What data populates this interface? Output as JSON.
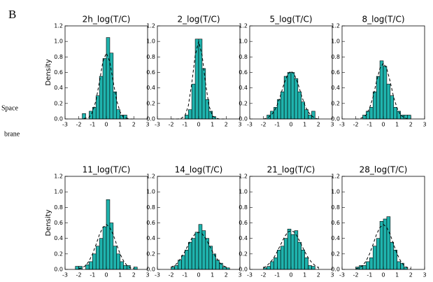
{
  "panel_label": "B",
  "side_labels": [
    "Space",
    "brane"
  ],
  "chart_data": [
    {
      "type": "histogram",
      "title": "2h_log(T/C)",
      "ylabel": "Density",
      "color": "#1fb3ad",
      "curve_color": "#000000",
      "bins": [
        -2.5,
        -2.25,
        -2,
        -1.75,
        -1.5,
        -1.25,
        -1,
        -0.75,
        -0.5,
        -0.25,
        0,
        0.25,
        0.5,
        0.75,
        1,
        1.25,
        1.5,
        1.75,
        2,
        2.25,
        2.5
      ],
      "values": [
        0,
        0,
        0,
        0.07,
        0,
        0.1,
        0.15,
        0.3,
        0.55,
        0.78,
        1.05,
        0.85,
        0.35,
        0.12,
        0.05,
        0.05,
        0,
        0,
        0,
        0
      ],
      "curve_x": [
        -2,
        -1.75,
        -1.5,
        -1.25,
        -1,
        -0.75,
        -0.5,
        -0.25,
        0,
        0.25,
        0.5,
        0.75,
        1,
        1.25,
        1.5,
        1.75,
        2
      ],
      "curve_values": [
        0,
        0,
        0.01,
        0.02,
        0.09,
        0.24,
        0.48,
        0.74,
        0.85,
        0.74,
        0.48,
        0.24,
        0.09,
        0.02,
        0.01,
        0,
        0
      ],
      "xlim": [
        -3,
        3
      ],
      "xticks": [
        -3,
        -2,
        -1,
        0,
        1,
        2,
        3
      ],
      "ylim": [
        0,
        1.2
      ],
      "yticks": [
        {
          "value": 0,
          "label": "0.0"
        },
        0.2,
        0.4,
        0.6,
        0.8,
        {
          "value": 1,
          "label": "1.0"
        },
        1.2
      ]
    },
    {
      "type": "histogram",
      "title": "2_log(T/C)",
      "color": "#1fb3ad",
      "curve_color": "#000000",
      "bins": [
        -2.5,
        -2.25,
        -2,
        -1.75,
        -1.5,
        -1.25,
        -1,
        -0.75,
        -0.5,
        -0.25,
        0,
        0.25,
        0.5,
        0.75,
        1,
        1.25,
        1.5,
        1.75,
        2,
        2.25,
        2.5
      ],
      "values": [
        0,
        0,
        0,
        0,
        0,
        0,
        0.05,
        0.12,
        0.45,
        1.03,
        1.03,
        0.65,
        0.25,
        0.1,
        0.03,
        0,
        0,
        0,
        0,
        0
      ],
      "curve_x": [
        -2,
        -1.75,
        -1.5,
        -1.25,
        -1,
        -0.75,
        -0.5,
        -0.25,
        0,
        0.25,
        0.5,
        0.75,
        1,
        1.25,
        1.5,
        1.75,
        2
      ],
      "curve_values": [
        0,
        0,
        0,
        0.01,
        0.04,
        0.17,
        0.46,
        0.82,
        1,
        0.82,
        0.46,
        0.17,
        0.04,
        0.01,
        0,
        0,
        0
      ],
      "xlim": [
        -3,
        3
      ],
      "xticks": [
        -3,
        -2,
        -1,
        0,
        1,
        2,
        3
      ],
      "ylim": [
        0,
        1.2
      ],
      "yticks": [
        {
          "value": 0,
          "label": "0.0"
        },
        0.2,
        0.4,
        0.6,
        0.8,
        {
          "value": 1,
          "label": "1.0"
        },
        1.2
      ]
    },
    {
      "type": "histogram",
      "title": "5_log(T/C)",
      "color": "#1fb3ad",
      "curve_color": "#000000",
      "bins": [
        -2.5,
        -2.25,
        -2,
        -1.75,
        -1.5,
        -1.25,
        -1,
        -0.75,
        -0.5,
        -0.25,
        0,
        0.25,
        0.5,
        0.75,
        1,
        1.25,
        1.5,
        1.75,
        2,
        2.25,
        2.5
      ],
      "values": [
        0,
        0,
        0,
        0.05,
        0.1,
        0.15,
        0.25,
        0.35,
        0.55,
        0.6,
        0.6,
        0.52,
        0.35,
        0.22,
        0.12,
        0.05,
        0.1,
        0,
        0,
        0
      ],
      "curve_x": [
        -2,
        -1.75,
        -1.5,
        -1.25,
        -1,
        -0.75,
        -0.5,
        -0.25,
        0,
        0.25,
        0.5,
        0.75,
        1,
        1.25,
        1.5,
        1.75,
        2
      ],
      "curve_values": [
        0,
        0.01,
        0.04,
        0.09,
        0.18,
        0.31,
        0.46,
        0.57,
        0.62,
        0.57,
        0.46,
        0.31,
        0.18,
        0.09,
        0.04,
        0.01,
        0
      ],
      "xlim": [
        -3,
        3
      ],
      "xticks": [
        -3,
        -2,
        -1,
        0,
        1,
        2,
        3
      ],
      "ylim": [
        0,
        1.2
      ],
      "yticks": [
        {
          "value": 0,
          "label": "0.0"
        },
        0.2,
        0.4,
        0.6,
        0.8,
        {
          "value": 1,
          "label": "1.0"
        },
        1.2
      ]
    },
    {
      "type": "histogram",
      "title": "8_log(T/C)",
      "color": "#1fb3ad",
      "curve_color": "#000000",
      "bins": [
        -2.5,
        -2.25,
        -2,
        -1.75,
        -1.5,
        -1.25,
        -1,
        -0.75,
        -0.5,
        -0.25,
        0,
        0.25,
        0.5,
        0.75,
        1,
        1.25,
        1.5,
        1.75,
        2,
        2.25,
        2.5
      ],
      "values": [
        0,
        0,
        0,
        0,
        0.05,
        0.1,
        0.15,
        0.35,
        0.55,
        0.75,
        0.68,
        0.45,
        0.3,
        0.15,
        0.1,
        0.05,
        0.05,
        0.05,
        0,
        0
      ],
      "curve_x": [
        -2,
        -1.75,
        -1.5,
        -1.25,
        -1,
        -0.75,
        -0.5,
        -0.25,
        0,
        0.25,
        0.5,
        0.75,
        1,
        1.25,
        1.5,
        1.75,
        2
      ],
      "curve_values": [
        0,
        0,
        0.02,
        0.05,
        0.14,
        0.28,
        0.48,
        0.65,
        0.72,
        0.65,
        0.48,
        0.28,
        0.14,
        0.05,
        0.02,
        0,
        0
      ],
      "xlim": [
        -3,
        3
      ],
      "xticks": [
        -3,
        -2,
        -1,
        0,
        1,
        2,
        3
      ],
      "ylim": [
        0,
        1.2
      ],
      "yticks": [
        {
          "value": 0,
          "label": "0.0"
        },
        0.2,
        0.4,
        0.6,
        0.8,
        {
          "value": 1,
          "label": "1.0"
        },
        1.2
      ]
    },
    {
      "type": "histogram",
      "title": "11_log(T/C)",
      "ylabel": "Density",
      "color": "#1fb3ad",
      "curve_color": "#000000",
      "bins": [
        -2.5,
        -2.25,
        -2,
        -1.75,
        -1.5,
        -1.25,
        -1,
        -0.75,
        -0.5,
        -0.25,
        0,
        0.25,
        0.5,
        0.75,
        1,
        1.25,
        1.5,
        1.75,
        2,
        2.25,
        2.5
      ],
      "values": [
        0,
        0.04,
        0.04,
        0,
        0.06,
        0.1,
        0.2,
        0.3,
        0.4,
        0.55,
        0.9,
        0.6,
        0.3,
        0.2,
        0.1,
        0.05,
        0.05,
        0,
        0.03,
        0
      ],
      "curve_x": [
        -2,
        -1.75,
        -1.5,
        -1.25,
        -1,
        -0.75,
        -0.5,
        -0.25,
        0,
        0.25,
        0.5,
        0.75,
        1,
        1.25,
        1.5,
        1.75,
        2
      ],
      "curve_values": [
        0.01,
        0.02,
        0.05,
        0.11,
        0.2,
        0.32,
        0.45,
        0.54,
        0.58,
        0.54,
        0.45,
        0.32,
        0.2,
        0.11,
        0.05,
        0.02,
        0.01
      ],
      "xlim": [
        -3,
        3
      ],
      "xticks": [
        -3,
        -2,
        -1,
        0,
        1,
        2,
        3
      ],
      "ylim": [
        0,
        1.2
      ],
      "yticks": [
        {
          "value": 0,
          "label": "0.0"
        },
        0.2,
        0.4,
        0.6,
        0.8,
        {
          "value": 1,
          "label": "1.0"
        },
        1.2
      ]
    },
    {
      "type": "histogram",
      "title": "14_log(T/C)",
      "color": "#1fb3ad",
      "curve_color": "#000000",
      "bins": [
        -2.5,
        -2.25,
        -2,
        -1.75,
        -1.5,
        -1.25,
        -1,
        -0.75,
        -0.5,
        -0.25,
        0,
        0.25,
        0.5,
        0.75,
        1,
        1.25,
        1.5,
        1.75,
        2,
        2.25,
        2.5
      ],
      "values": [
        0,
        0,
        0.03,
        0.05,
        0.12,
        0.18,
        0.25,
        0.35,
        0.4,
        0.48,
        0.58,
        0.5,
        0.4,
        0.3,
        0.2,
        0.12,
        0.08,
        0.03,
        0.02,
        0
      ],
      "curve_x": [
        -2,
        -1.75,
        -1.5,
        -1.25,
        -1,
        -0.75,
        -0.5,
        -0.25,
        0,
        0.25,
        0.5,
        0.75,
        1,
        1.25,
        1.5,
        1.75,
        2
      ],
      "curve_values": [
        0.03,
        0.05,
        0.09,
        0.16,
        0.23,
        0.32,
        0.4,
        0.46,
        0.48,
        0.46,
        0.4,
        0.32,
        0.23,
        0.16,
        0.09,
        0.05,
        0.03
      ],
      "xlim": [
        -3,
        3
      ],
      "xticks": [
        -3,
        -2,
        -1,
        0,
        1,
        2,
        3
      ],
      "ylim": [
        0,
        1.2
      ],
      "yticks": [
        {
          "value": 0,
          "label": "0.0"
        },
        0.2,
        0.4,
        0.6,
        0.8,
        {
          "value": 1,
          "label": "1.0"
        },
        1.2
      ]
    },
    {
      "type": "histogram",
      "title": "21_log(T/C)",
      "color": "#1fb3ad",
      "curve_color": "#000000",
      "bins": [
        -2.5,
        -2.25,
        -2,
        -1.75,
        -1.5,
        -1.25,
        -1,
        -0.75,
        -0.5,
        -0.25,
        0,
        0.25,
        0.5,
        0.75,
        1,
        1.25,
        1.5,
        1.75,
        2,
        2.25,
        2.5
      ],
      "values": [
        0,
        0,
        0.02,
        0.04,
        0.1,
        0.15,
        0.25,
        0.3,
        0.4,
        0.52,
        0.45,
        0.5,
        0.35,
        0.25,
        0.15,
        0.05,
        0.04,
        0,
        0,
        0
      ],
      "curve_x": [
        -2,
        -1.75,
        -1.5,
        -1.25,
        -1,
        -0.75,
        -0.5,
        -0.25,
        0,
        0.25,
        0.5,
        0.75,
        1,
        1.25,
        1.5,
        1.75,
        2
      ],
      "curve_values": [
        0.02,
        0.05,
        0.09,
        0.15,
        0.23,
        0.32,
        0.41,
        0.48,
        0.5,
        0.48,
        0.41,
        0.32,
        0.23,
        0.15,
        0.09,
        0.05,
        0.02
      ],
      "xlim": [
        -3,
        3
      ],
      "xticks": [
        -3,
        -2,
        -1,
        0,
        1,
        2,
        3
      ],
      "ylim": [
        0,
        1.2
      ],
      "yticks": [
        {
          "value": 0,
          "label": "0.0"
        },
        0.2,
        0.4,
        0.6,
        0.8,
        {
          "value": 1,
          "label": "1.0"
        },
        1.2
      ]
    },
    {
      "type": "histogram",
      "title": "28_log(T/C)",
      "color": "#1fb3ad",
      "curve_color": "#000000",
      "bins": [
        -2.5,
        -2.25,
        -2,
        -1.75,
        -1.5,
        -1.25,
        -1,
        -0.75,
        -0.5,
        -0.25,
        0,
        0.25,
        0.5,
        0.75,
        1,
        1.25,
        1.5,
        1.75,
        2,
        2.25,
        2.5
      ],
      "values": [
        0,
        0,
        0.03,
        0.05,
        0.05,
        0.1,
        0.15,
        0.3,
        0.4,
        0.62,
        0.65,
        0.68,
        0.35,
        0.25,
        0.1,
        0.08,
        0.03,
        0,
        0,
        0
      ],
      "curve_x": [
        -2,
        -1.75,
        -1.5,
        -1.25,
        -1,
        -0.75,
        -0.5,
        -0.25,
        0,
        0.25,
        0.5,
        0.75,
        1,
        1.25,
        1.5,
        1.75,
        2
      ],
      "curve_values": [
        0.01,
        0.02,
        0.05,
        0.11,
        0.2,
        0.32,
        0.45,
        0.54,
        0.58,
        0.54,
        0.45,
        0.32,
        0.2,
        0.11,
        0.05,
        0.02,
        0.01
      ],
      "xlim": [
        -3,
        3
      ],
      "xticks": [
        -3,
        -2,
        -1,
        0,
        1,
        2,
        3
      ],
      "ylim": [
        0,
        1.2
      ],
      "yticks": [
        {
          "value": 0,
          "label": "0.0"
        },
        0.2,
        0.4,
        0.6,
        0.8,
        {
          "value": 1,
          "label": "1.0"
        },
        1.2
      ]
    }
  ]
}
